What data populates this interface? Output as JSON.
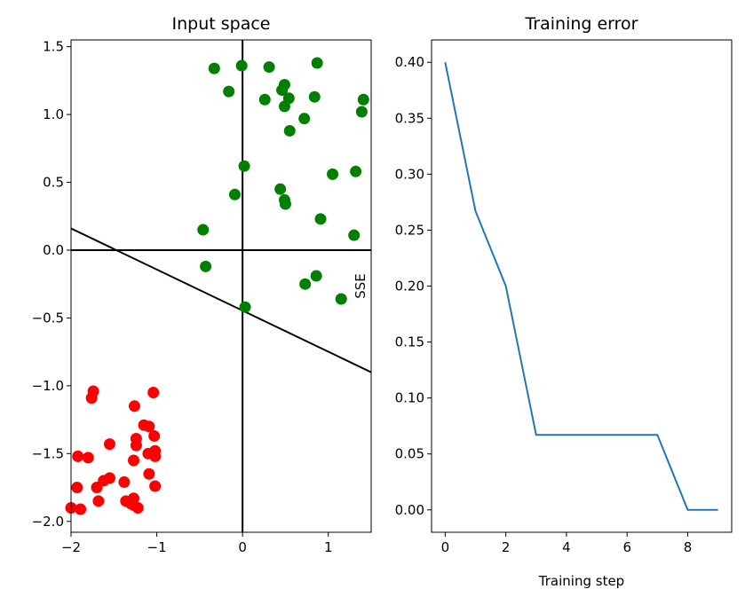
{
  "chart_data": [
    {
      "type": "scatter",
      "title": "Input space",
      "xlabel": "",
      "ylabel": "",
      "xlim": [
        -2,
        1.5
      ],
      "ylim": [
        -2.08,
        1.55
      ],
      "xticks": [
        -2,
        -1,
        0,
        1
      ],
      "yticks": [
        -2.0,
        -1.5,
        -1.0,
        -0.5,
        0.0,
        0.5,
        1.0,
        1.5
      ],
      "xtick_labels": [
        "−2",
        "−1",
        "0",
        "1"
      ],
      "ytick_labels": [
        "−2.0",
        "−1.5",
        "−1.0",
        "−0.5",
        "0.0",
        "0.5",
        "1.0",
        "1.5"
      ],
      "axes_lines": {
        "x": 0,
        "y": 0,
        "color": "#000000"
      },
      "decision_line": {
        "x": [
          -2,
          1.5
        ],
        "y": [
          0.16,
          -0.9
        ],
        "color": "#000000"
      },
      "series": [
        {
          "color": "#008000",
          "points": [
            [
              -0.33,
              1.34
            ],
            [
              -0.01,
              1.36
            ],
            [
              0.31,
              1.35
            ],
            [
              0.87,
              1.38
            ],
            [
              -0.16,
              1.17
            ],
            [
              0.49,
              1.22
            ],
            [
              0.46,
              1.18
            ],
            [
              0.54,
              1.12
            ],
            [
              0.26,
              1.11
            ],
            [
              0.84,
              1.13
            ],
            [
              1.41,
              1.11
            ],
            [
              1.39,
              1.02
            ],
            [
              0.49,
              1.06
            ],
            [
              0.72,
              0.97
            ],
            [
              0.55,
              0.88
            ],
            [
              0.02,
              0.62
            ],
            [
              1.05,
              0.56
            ],
            [
              1.32,
              0.58
            ],
            [
              0.44,
              0.45
            ],
            [
              -0.09,
              0.41
            ],
            [
              0.49,
              0.37
            ],
            [
              0.5,
              0.34
            ],
            [
              0.91,
              0.23
            ],
            [
              -0.46,
              0.15
            ],
            [
              1.3,
              0.11
            ],
            [
              -0.43,
              -0.12
            ],
            [
              0.86,
              -0.19
            ],
            [
              0.73,
              -0.25
            ],
            [
              1.15,
              -0.36
            ],
            [
              0.03,
              -0.42
            ]
          ]
        },
        {
          "color": "#ff0000",
          "points": [
            [
              -1.74,
              -1.04
            ],
            [
              -1.76,
              -1.09
            ],
            [
              -1.04,
              -1.05
            ],
            [
              -1.26,
              -1.15
            ],
            [
              -1.15,
              -1.29
            ],
            [
              -1.09,
              -1.3
            ],
            [
              -1.03,
              -1.37
            ],
            [
              -1.24,
              -1.39
            ],
            [
              -1.55,
              -1.43
            ],
            [
              -1.24,
              -1.44
            ],
            [
              -1.02,
              -1.48
            ],
            [
              -1.1,
              -1.5
            ],
            [
              -1.02,
              -1.52
            ],
            [
              -1.92,
              -1.52
            ],
            [
              -1.8,
              -1.53
            ],
            [
              -1.27,
              -1.55
            ],
            [
              -1.09,
              -1.65
            ],
            [
              -1.55,
              -1.68
            ],
            [
              -1.62,
              -1.7
            ],
            [
              -1.38,
              -1.71
            ],
            [
              -1.02,
              -1.74
            ],
            [
              -1.93,
              -1.75
            ],
            [
              -1.7,
              -1.75
            ],
            [
              -1.27,
              -1.83
            ],
            [
              -1.36,
              -1.85
            ],
            [
              -1.68,
              -1.85
            ],
            [
              -1.3,
              -1.87
            ],
            [
              -1.27,
              -1.88
            ],
            [
              -2.0,
              -1.9
            ],
            [
              -1.22,
              -1.9
            ],
            [
              -1.89,
              -1.91
            ]
          ]
        }
      ]
    },
    {
      "type": "line",
      "title": "Training error",
      "xlabel": "Training step",
      "ylabel": "SSE",
      "xlim": [
        -0.45,
        9.45
      ],
      "ylim": [
        -0.02,
        0.42
      ],
      "xticks": [
        0,
        2,
        4,
        6,
        8
      ],
      "yticks": [
        0.0,
        0.05,
        0.1,
        0.15,
        0.2,
        0.25,
        0.3,
        0.35,
        0.4
      ],
      "xtick_labels": [
        "0",
        "2",
        "4",
        "6",
        "8"
      ],
      "ytick_labels": [
        "0.00",
        "0.05",
        "0.10",
        "0.15",
        "0.20",
        "0.25",
        "0.30",
        "0.35",
        "0.40"
      ],
      "series": [
        {
          "color": "#1f77b4",
          "x": [
            0,
            1,
            2,
            3,
            4,
            5,
            6,
            7,
            8,
            9
          ],
          "y": [
            0.4,
            0.267,
            0.2,
            0.067,
            0.067,
            0.067,
            0.067,
            0.067,
            0.0,
            0.0
          ]
        }
      ]
    }
  ]
}
